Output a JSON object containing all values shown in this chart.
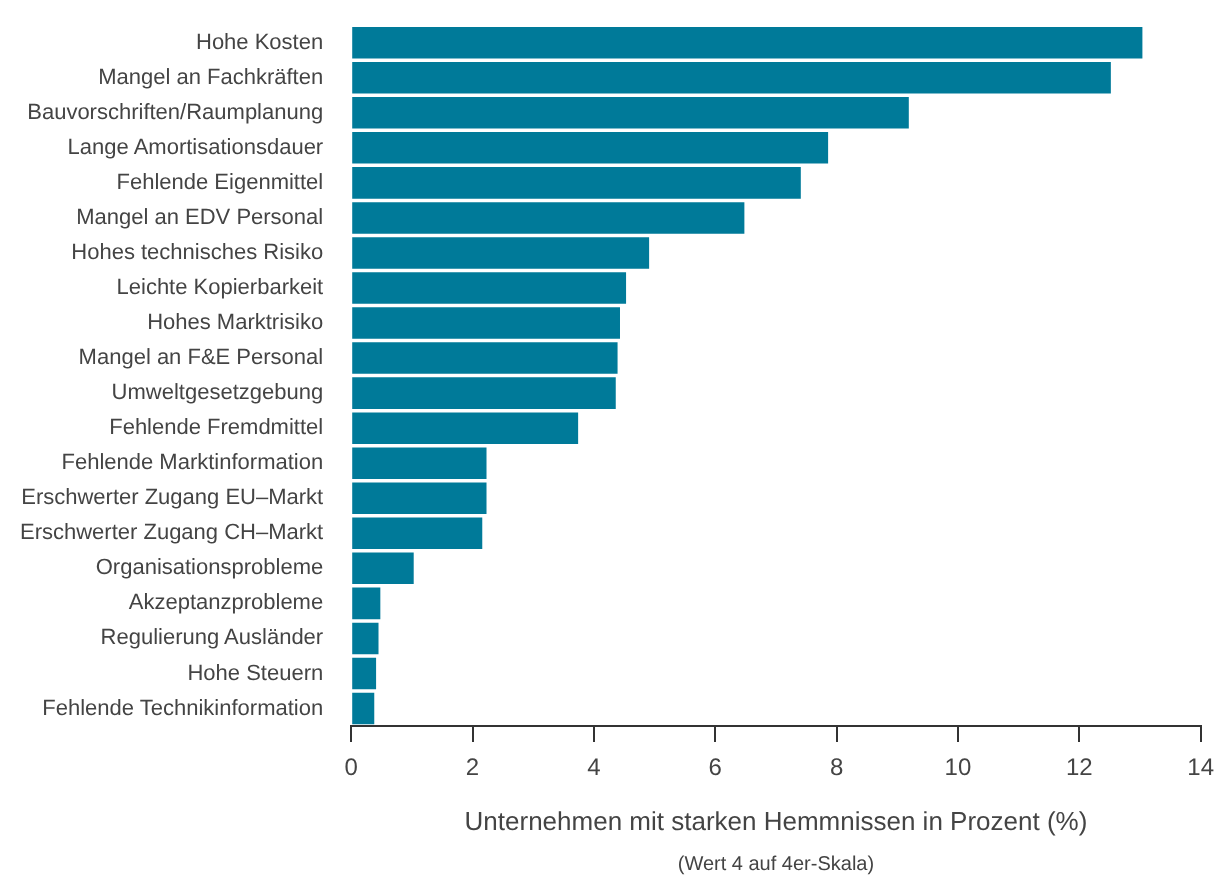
{
  "chart_data": {
    "type": "bar",
    "orientation": "horizontal",
    "xlabel": "Unternehmen mit starken Hemmnissen in Prozent (%)",
    "annotations": [
      "(Wert 4 auf 4er-Skala)"
    ],
    "categories": [
      "Hohe Kosten",
      "Mangel an Fachkräften",
      "Bauvorschriften/Raumplanung",
      "Lange Amortisationsdauer",
      "Fehlende Eigenmittel",
      "Mangel an EDV Personal",
      "Hohes technisches Risiko",
      "Leichte Kopierbarkeit",
      "Hohes Marktrisiko",
      "Mangel an F&E Personal",
      "Umweltgesetzgebung",
      "Fehlende Fremdmittel",
      "Fehlende Marktinformation",
      "Erschwerter Zugang EU–Markt",
      "Erschwerter Zugang CH–Markt",
      "Organisationsprobleme",
      "Akzeptanzprobleme",
      "Regulierung Ausländer",
      "Hohe Steuern",
      "Fehlende Technikinformation"
    ],
    "values": [
      13.04,
      12.52,
      9.19,
      7.86,
      7.41,
      6.48,
      4.91,
      4.53,
      4.43,
      4.39,
      4.36,
      3.74,
      2.23,
      2.23,
      2.16,
      1.03,
      0.48,
      0.45,
      0.41,
      0.38
    ],
    "color": "#007a99",
    "xlim": [
      0,
      14
    ],
    "xticks": [
      0,
      2,
      4,
      6,
      8,
      10,
      12,
      14
    ],
    "grid": false,
    "legend": false
  }
}
